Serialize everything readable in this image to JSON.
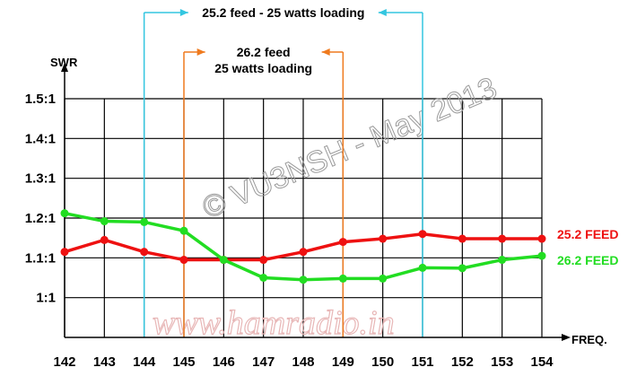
{
  "chart_data": {
    "type": "line",
    "xlabel": "FREQ.",
    "ylabel": "SWR",
    "x": [
      142,
      143,
      144,
      145,
      146,
      147,
      148,
      149,
      150,
      151,
      152,
      153,
      154
    ],
    "x_ticks": [
      "142",
      "143",
      "144",
      "145",
      "146",
      "147",
      "148",
      "149",
      "150",
      "151",
      "152",
      "153",
      "154"
    ],
    "y_ticks": [
      {
        "value": 1.0,
        "label": "1:1"
      },
      {
        "value": 1.1,
        "label": "1.1:1"
      },
      {
        "value": 1.2,
        "label": "1.2:1"
      },
      {
        "value": 1.3,
        "label": "1.3:1"
      },
      {
        "value": 1.4,
        "label": "1.4:1"
      },
      {
        "value": 1.5,
        "label": "1.5:1"
      }
    ],
    "ylim": [
      0.9,
      1.5
    ],
    "xlim": [
      142,
      154
    ],
    "grid": true,
    "series": [
      {
        "name": "25.2 FEED",
        "color": "#ee1111",
        "values": [
          1.115,
          1.145,
          1.115,
          1.095,
          1.095,
          1.095,
          1.115,
          1.14,
          1.148,
          1.16,
          1.148,
          1.148,
          1.148
        ]
      },
      {
        "name": "26.2 FEED",
        "color": "#22dd22",
        "values": [
          1.212,
          1.192,
          1.19,
          1.168,
          1.095,
          1.05,
          1.045,
          1.048,
          1.048,
          1.075,
          1.074,
          1.095,
          1.105
        ]
      }
    ],
    "annotations": [
      {
        "lines": [
          "25.2 feed - 25 watts loading"
        ],
        "from_x": 144,
        "to_x": 151,
        "color": "#33c6e0"
      },
      {
        "lines": [
          "26.2 feed",
          "25 watts loading"
        ],
        "from_x": 145,
        "to_x": 149,
        "color": "#ef7a1e"
      }
    ],
    "watermarks": [
      "© VU3NSH - May 2013",
      "www.hamradio.in"
    ]
  }
}
